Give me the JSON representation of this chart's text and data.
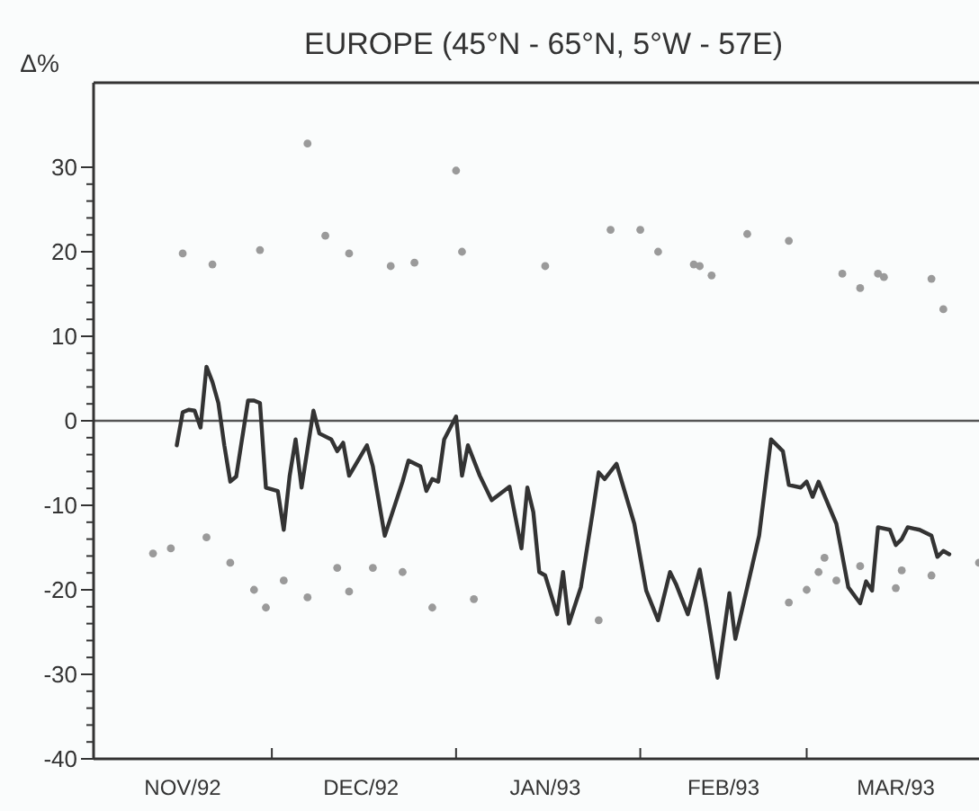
{
  "chart_data": {
    "type": "line",
    "title": "EUROPE (45°N - 65°N, 5°W - 57E)",
    "ylabel": "Δ%",
    "xlim": [
      "1992-11-01",
      "1993-03-30"
    ],
    "xticks": [
      {
        "value": "1992-11-16",
        "label": "NOV/92"
      },
      {
        "value": "1992-12-01",
        "label": null
      },
      {
        "value": "1992-12-16",
        "label": "DEC/92"
      },
      {
        "value": "1993-01-01",
        "label": null
      },
      {
        "value": "1993-01-16",
        "label": "JAN/93"
      },
      {
        "value": "1993-02-01",
        "label": null
      },
      {
        "value": "1993-02-15",
        "label": "FEB/93"
      },
      {
        "value": "1993-03-01",
        "label": null
      },
      {
        "value": "1993-03-16",
        "label": "MAR/93"
      }
    ],
    "ylim": [
      -40,
      40
    ],
    "yticks": [
      -40,
      {
        "value": -38,
        "label": null
      },
      {
        "value": -36,
        "label": null
      },
      {
        "value": -34,
        "label": null
      },
      {
        "value": -32,
        "label": null
      },
      -30,
      {
        "value": -28,
        "label": null
      },
      {
        "value": -26,
        "label": null
      },
      {
        "value": -24,
        "label": null
      },
      {
        "value": -22,
        "label": null
      },
      -20,
      {
        "value": -18,
        "label": null
      },
      {
        "value": -16,
        "label": null
      },
      {
        "value": -14,
        "label": null
      },
      {
        "value": -12,
        "label": null
      },
      -10,
      {
        "value": -8,
        "label": null
      },
      {
        "value": -6,
        "label": null
      },
      {
        "value": -4,
        "label": null
      },
      {
        "value": -2,
        "label": null
      },
      0,
      {
        "value": 2,
        "label": null
      },
      {
        "value": 4,
        "label": null
      },
      {
        "value": 6,
        "label": null
      },
      {
        "value": 8,
        "label": null
      },
      10,
      {
        "value": 12,
        "label": null
      },
      {
        "value": 14,
        "label": null
      },
      {
        "value": 16,
        "label": null
      },
      {
        "value": 18,
        "label": null
      },
      20,
      {
        "value": 22,
        "label": null
      },
      {
        "value": 24,
        "label": null
      },
      {
        "value": 26,
        "label": null
      },
      {
        "value": 28,
        "label": null
      },
      30
    ],
    "grid": false,
    "ref_lines": [
      {
        "axis": "y",
        "value": 0,
        "color": "#555555"
      }
    ],
    "series": [
      {
        "type": "scatter",
        "marker": "circle",
        "color": "#9a9a9a",
        "x": [
          "1992-11-16",
          "1992-11-21",
          "1992-11-29",
          "1992-12-07",
          "1992-12-10",
          "1992-12-14",
          "1992-12-21",
          "1992-12-25",
          "1993-01-01",
          "1993-01-02",
          "1993-01-16",
          "1993-01-27",
          "1993-02-01",
          "1993-02-04",
          "1993-02-10",
          "1993-02-11",
          "1993-02-13",
          "1993-02-19",
          "1993-02-26",
          "1993-03-07",
          "1993-03-10",
          "1993-03-13",
          "1993-03-14",
          "1993-03-22",
          "1993-03-24"
        ],
        "values": [
          19.8,
          18.5,
          20.2,
          32.8,
          21.9,
          19.8,
          18.3,
          18.7,
          29.6,
          20,
          18.3,
          22.6,
          22.6,
          20,
          18.5,
          18.3,
          17.2,
          22.1,
          21.3,
          17.4,
          15.7,
          17.4,
          17,
          16.8,
          13.2
        ]
      },
      {
        "type": "scatter",
        "marker": "circle",
        "color": "#9a9a9a",
        "x": [
          "1992-11-11",
          "1992-11-14",
          "1992-11-20",
          "1992-11-24",
          "1992-11-28",
          "1992-11-30",
          "1992-12-03",
          "1992-12-07",
          "1992-12-12",
          "1992-12-14",
          "1992-12-18",
          "1992-12-23",
          "1992-12-28",
          "1993-01-04",
          "1993-01-25",
          "1993-02-26",
          "1993-03-01",
          "1993-03-03",
          "1993-03-04",
          "1993-03-06",
          "1993-03-10",
          "1993-03-16",
          "1993-03-17",
          "1993-03-22",
          "1993-03-30"
        ],
        "values": [
          -15.7,
          -15.1,
          -13.8,
          -16.8,
          -20,
          -22.1,
          -18.9,
          -20.9,
          -17.4,
          -20.2,
          -17.4,
          -17.9,
          -22.1,
          -21.1,
          -23.6,
          -21.5,
          -20,
          -17.9,
          -16.2,
          -18.9,
          -17.2,
          -19.8,
          -17.7,
          -18.3,
          -16.8
        ]
      },
      {
        "color": "#333333",
        "x": [
          "1992-11-15",
          "1992-11-16",
          "1992-11-17",
          "1992-11-18",
          "1992-11-19",
          "1992-11-20",
          "1992-11-21",
          "1992-11-22",
          "1992-11-23",
          "1992-11-24",
          "1992-11-25",
          "1992-11-27",
          "1992-11-28",
          "1992-11-29",
          "1992-11-30",
          "1992-12-02",
          "1992-12-03",
          "1992-12-04",
          "1992-12-05",
          "1992-12-06",
          "1992-12-08",
          "1992-12-09",
          "1992-12-11",
          "1992-12-12",
          "1992-12-13",
          "1992-12-14",
          "1992-12-17",
          "1992-12-18",
          "1992-12-20",
          "1992-12-23",
          "1992-12-24",
          "1992-12-26",
          "1992-12-27",
          "1992-12-28",
          "1992-12-29",
          "1992-12-30",
          "1993-01-01",
          "1993-01-02",
          "1993-01-03",
          "1993-01-05",
          "1993-01-07",
          "1993-01-10",
          "1993-01-12",
          "1993-01-13",
          "1993-01-14",
          "1993-01-15",
          "1993-01-16",
          "1993-01-18",
          "1993-01-19",
          "1993-01-20",
          "1993-01-22",
          "1993-01-24",
          "1993-01-25",
          "1993-01-26",
          "1993-01-28",
          "1993-01-31",
          "1993-02-02",
          "1993-02-04",
          "1993-02-06",
          "1993-02-07",
          "1993-02-09",
          "1993-02-11",
          "1993-02-12",
          "1993-02-14",
          "1993-02-16",
          "1993-02-17",
          "1993-02-21",
          "1993-02-23",
          "1993-02-25",
          "1993-02-26",
          "1993-02-28",
          "1993-03-01",
          "1993-03-02",
          "1993-03-03",
          "1993-03-06",
          "1993-03-08",
          "1993-03-10",
          "1993-03-11",
          "1993-03-12",
          "1993-03-13",
          "1993-03-15",
          "1993-03-16",
          "1993-03-17",
          "1993-03-18",
          "1993-03-20",
          "1993-03-22",
          "1993-03-23",
          "1993-03-24",
          "1993-03-25"
        ],
        "values": [
          -2.9,
          1.0,
          1.3,
          1.2,
          -0.8,
          6.4,
          4.6,
          2.1,
          -2.9,
          -7.2,
          -6.6,
          2.4,
          2.4,
          2.1,
          -7.9,
          -8.3,
          -12.9,
          -6.5,
          -2.2,
          -7.9,
          1.2,
          -1.5,
          -2.2,
          -3.6,
          -2.6,
          -6.5,
          -2.9,
          -5.4,
          -13.6,
          -7.2,
          -4.7,
          -5.4,
          -8.3,
          -6.9,
          -7.2,
          -2.2,
          0.5,
          -6.5,
          -2.9,
          -6.5,
          -9.4,
          -7.8,
          -15.1,
          -7.9,
          -10.8,
          -17.9,
          -18.3,
          -22.9,
          -17.9,
          -24.0,
          -19.7,
          -10.8,
          -6.1,
          -6.9,
          -5.1,
          -12.2,
          -20.1,
          -23.6,
          -17.9,
          -19.3,
          -22.9,
          -17.6,
          -21.5,
          -30.4,
          -20.4,
          -25.8,
          -13.6,
          -2.2,
          -3.6,
          -7.6,
          -7.9,
          -7.2,
          -9.0,
          -7.2,
          -12.2,
          -19.7,
          -21.6,
          -19.0,
          -20.1,
          -12.6,
          -12.9,
          -14.7,
          -14.0,
          -12.6,
          -12.9,
          -13.6,
          -16.1,
          -15.4,
          -15.8
        ]
      }
    ]
  }
}
